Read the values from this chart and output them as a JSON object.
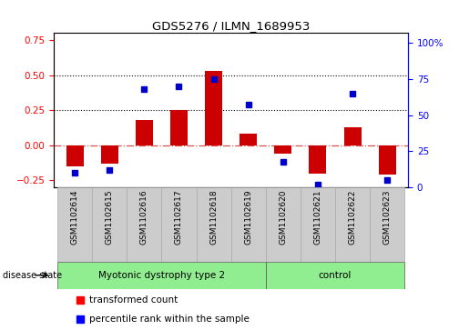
{
  "title": "GDS5276 / ILMN_1689953",
  "samples": [
    "GSM1102614",
    "GSM1102615",
    "GSM1102616",
    "GSM1102617",
    "GSM1102618",
    "GSM1102619",
    "GSM1102620",
    "GSM1102621",
    "GSM1102622",
    "GSM1102623"
  ],
  "transformed_count": [
    -0.15,
    -0.13,
    0.18,
    0.25,
    0.53,
    0.08,
    -0.06,
    -0.2,
    0.13,
    -0.21
  ],
  "percentile_rank": [
    10,
    12,
    68,
    70,
    75,
    57,
    18,
    2,
    65,
    5
  ],
  "bar_color": "#cc0000",
  "dot_color": "#0000cc",
  "left_ylim": [
    -0.3,
    0.8
  ],
  "right_ylim": [
    0,
    106.67
  ],
  "left_yticks": [
    -0.25,
    0.0,
    0.25,
    0.5,
    0.75
  ],
  "right_yticks": [
    0,
    25,
    50,
    75,
    100
  ],
  "hline_y": [
    0.25,
    0.5
  ],
  "zero_line_y": 0.0,
  "disease_state_label": "disease state",
  "group_defs": [
    {
      "name": "Myotonic dystrophy type 2",
      "start": 0,
      "end": 5
    },
    {
      "name": "control",
      "start": 6,
      "end": 9
    }
  ],
  "group_color": "#90ee90",
  "sample_box_color": "#cccccc",
  "sample_box_edge": "#aaaaaa",
  "legend_red": "transformed count",
  "legend_blue": "percentile rank within the sample",
  "bar_width": 0.5
}
